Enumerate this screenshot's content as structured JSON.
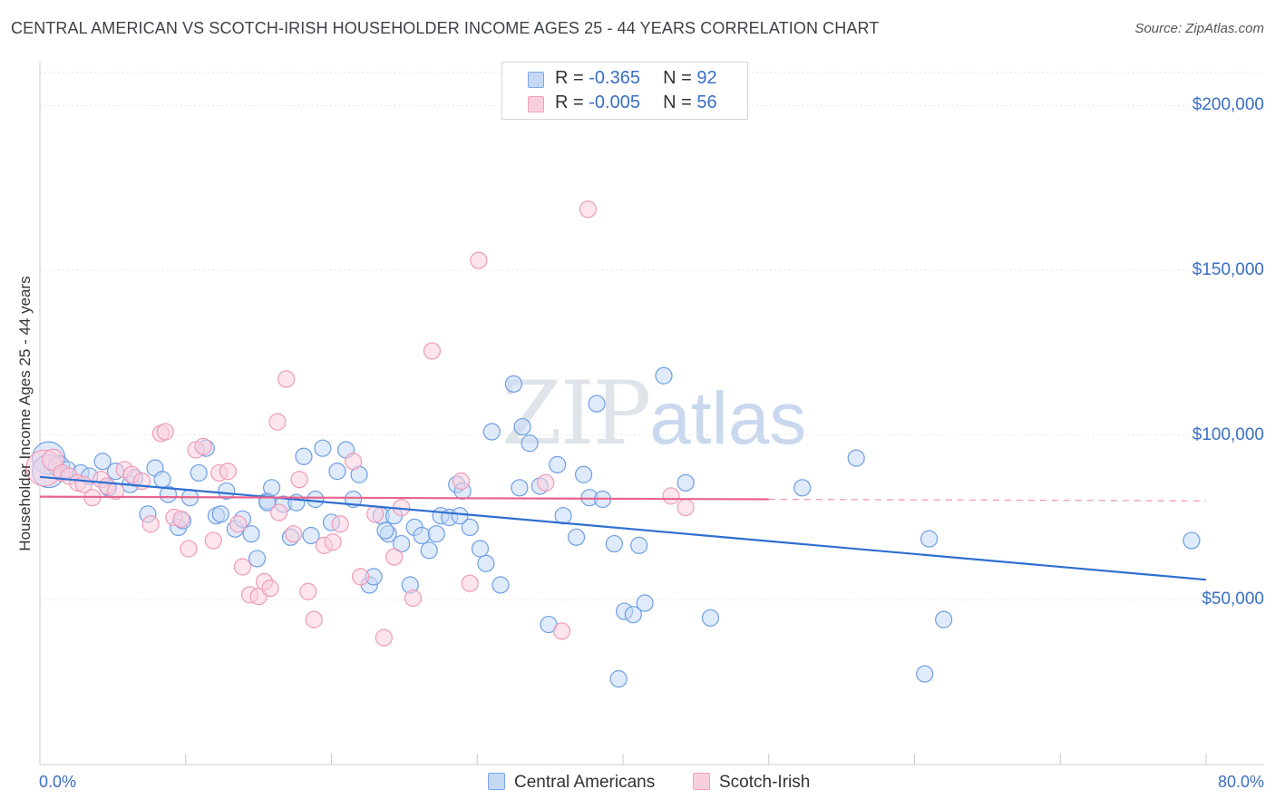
{
  "title": "CENTRAL AMERICAN VS SCOTCH-IRISH HOUSEHOLDER INCOME AGES 25 - 44 YEARS CORRELATION CHART",
  "source": "Source: ZipAtlas.com",
  "watermark": {
    "zip": "ZIP",
    "atlas": "atlas"
  },
  "legend": {
    "rows": [
      {
        "r_label": "R = ",
        "r_value": "-0.365",
        "n_label": "N = ",
        "n_value": "92",
        "color": "#7aa6e6",
        "fill": "#c5d9f5"
      },
      {
        "r_label": "R = ",
        "r_value": "-0.005",
        "n_label": "N = ",
        "n_value": "56",
        "color": "#f0a0bd",
        "fill": "#f9cfde"
      }
    ]
  },
  "bottom_legend": [
    {
      "label": "Central Americans",
      "color": "#7aa6e6",
      "fill": "#c5d9f5"
    },
    {
      "label": "Scotch-Irish",
      "color": "#f0a0bd",
      "fill": "#f9cfde"
    }
  ],
  "chart_data": {
    "type": "scatter",
    "title": "CENTRAL AMERICAN VS SCOTCH-IRISH HOUSEHOLDER INCOME AGES 25 - 44 YEARS CORRELATION CHART",
    "xlabel": "",
    "ylabel": "Householder Income Ages 25 - 44 years",
    "xlim": [
      0,
      80
    ],
    "ylim": [
      0,
      210000
    ],
    "x_tick_labels": [
      "0.0%",
      "80.0%"
    ],
    "y_ticks": [
      50000,
      100000,
      150000,
      200000
    ],
    "y_tick_labels": [
      "$50,000",
      "$100,000",
      "$150,000",
      "$200,000"
    ],
    "grid": true,
    "series": [
      {
        "name": "Central Americans",
        "color": "#6f9fe2",
        "fill": "#c5d9f5",
        "trend": {
          "x": [
            0,
            80
          ],
          "y": [
            87300,
            56100
          ],
          "color": "#2f6fd0"
        },
        "points": [
          [
            0.6,
            93000,
            2
          ],
          [
            0.6,
            89000,
            2
          ],
          [
            1.3,
            90500,
            1.3
          ],
          [
            1.9,
            89500,
            1
          ],
          [
            2.8,
            88500,
            1
          ],
          [
            3.4,
            87500,
            1
          ],
          [
            4.3,
            92000,
            1
          ],
          [
            4.7,
            84000,
            1
          ],
          [
            5.2,
            89000,
            1
          ],
          [
            6.2,
            85000,
            1
          ],
          [
            6.5,
            87000,
            1
          ],
          [
            7.4,
            76000,
            1
          ],
          [
            7.9,
            90000,
            1
          ],
          [
            8.4,
            86500,
            1
          ],
          [
            8.8,
            82000,
            1
          ],
          [
            9.5,
            72000,
            1
          ],
          [
            9.8,
            74000,
            1
          ],
          [
            10.3,
            81000,
            1
          ],
          [
            10.9,
            88500,
            1
          ],
          [
            11.4,
            96000,
            1
          ],
          [
            12.1,
            75500,
            1
          ],
          [
            12.4,
            76000,
            1
          ],
          [
            12.8,
            83000,
            1
          ],
          [
            13.4,
            71500,
            1
          ],
          [
            13.9,
            74500,
            1
          ],
          [
            14.5,
            70000,
            1
          ],
          [
            14.9,
            62500,
            1
          ],
          [
            15.6,
            80000,
            1
          ],
          [
            15.9,
            84000,
            1
          ],
          [
            16.7,
            79000,
            1
          ],
          [
            17.2,
            69000,
            1
          ],
          [
            17.6,
            79500,
            1
          ],
          [
            18.1,
            93500,
            1
          ],
          [
            18.6,
            69500,
            1
          ],
          [
            18.9,
            80500,
            1
          ],
          [
            19.4,
            96000,
            1
          ],
          [
            20.0,
            73500,
            1
          ],
          [
            20.4,
            89000,
            1
          ],
          [
            21.0,
            95500,
            1
          ],
          [
            21.5,
            80500,
            1
          ],
          [
            21.9,
            88000,
            1
          ],
          [
            22.6,
            54500,
            1
          ],
          [
            22.9,
            57000,
            1
          ],
          [
            23.4,
            75500,
            1
          ],
          [
            23.9,
            70000,
            1
          ],
          [
            24.3,
            75500,
            1
          ],
          [
            24.8,
            67000,
            1
          ],
          [
            25.4,
            54500,
            1
          ],
          [
            25.7,
            72000,
            1
          ],
          [
            26.2,
            69500,
            1
          ],
          [
            26.7,
            65000,
            1
          ],
          [
            27.2,
            70000,
            1
          ],
          [
            27.5,
            75500,
            1
          ],
          [
            28.1,
            75000,
            1
          ],
          [
            28.6,
            85000,
            1
          ],
          [
            29.0,
            83000,
            1
          ],
          [
            29.5,
            72000,
            1
          ],
          [
            30.2,
            65500,
            1
          ],
          [
            30.6,
            61000,
            1
          ],
          [
            31.0,
            101000,
            1
          ],
          [
            31.6,
            54500,
            1
          ],
          [
            32.5,
            115500,
            1
          ],
          [
            32.9,
            84000,
            1
          ],
          [
            33.1,
            102500,
            1
          ],
          [
            33.6,
            97500,
            1
          ],
          [
            34.3,
            84500,
            1
          ],
          [
            34.9,
            42500,
            1
          ],
          [
            35.5,
            91000,
            1
          ],
          [
            35.9,
            75500,
            1
          ],
          [
            36.8,
            69000,
            1
          ],
          [
            37.3,
            88000,
            1
          ],
          [
            37.7,
            81000,
            1
          ],
          [
            38.2,
            109500,
            1
          ],
          [
            38.6,
            80500,
            1
          ],
          [
            39.4,
            67000,
            1
          ],
          [
            39.7,
            26000,
            1
          ],
          [
            40.1,
            46500,
            1
          ],
          [
            40.7,
            45500,
            1
          ],
          [
            41.1,
            66500,
            1
          ],
          [
            41.5,
            49000,
            1
          ],
          [
            42.8,
            118000,
            1
          ],
          [
            44.3,
            85500,
            1
          ],
          [
            46.0,
            44500,
            1
          ],
          [
            52.3,
            84000,
            1
          ],
          [
            56.0,
            93000,
            1
          ],
          [
            60.7,
            27500,
            1
          ],
          [
            61.0,
            68500,
            1
          ],
          [
            62.0,
            44000,
            1
          ],
          [
            79.0,
            68000,
            1
          ],
          [
            15.6,
            79500,
            1
          ],
          [
            28.8,
            75500,
            1
          ],
          [
            23.7,
            71000,
            1
          ]
        ]
      },
      {
        "name": "Scotch-Irish",
        "color": "#ee9bb9",
        "fill": "#f9cfde",
        "trend": {
          "x": [
            0,
            50
          ],
          "y": [
            81300,
            80500
          ],
          "color": "#e8638f",
          "dashed_to": 80
        },
        "points": [
          [
            0.3,
            90000,
            2.2
          ],
          [
            0.9,
            92500,
            1.3
          ],
          [
            1.5,
            88500,
            1
          ],
          [
            2.0,
            87500,
            1
          ],
          [
            2.6,
            85500,
            1
          ],
          [
            3.0,
            85000,
            1
          ],
          [
            3.6,
            81000,
            1
          ],
          [
            4.2,
            86500,
            1
          ],
          [
            4.6,
            84500,
            1
          ],
          [
            5.2,
            83000,
            1
          ],
          [
            5.8,
            89500,
            1
          ],
          [
            6.3,
            88000,
            1
          ],
          [
            7.0,
            86000,
            1
          ],
          [
            7.6,
            73000,
            1
          ],
          [
            8.3,
            100500,
            1
          ],
          [
            8.6,
            101000,
            1
          ],
          [
            9.2,
            75000,
            1
          ],
          [
            9.7,
            74500,
            1
          ],
          [
            10.2,
            65500,
            1
          ],
          [
            10.7,
            95500,
            1
          ],
          [
            11.2,
            96500,
            1
          ],
          [
            11.9,
            68000,
            1
          ],
          [
            12.3,
            88500,
            1
          ],
          [
            12.9,
            89000,
            1
          ],
          [
            13.6,
            73000,
            1
          ],
          [
            13.9,
            60000,
            1
          ],
          [
            14.4,
            51500,
            1
          ],
          [
            15.0,
            51000,
            1
          ],
          [
            15.4,
            55500,
            1
          ],
          [
            15.8,
            53500,
            1
          ],
          [
            16.3,
            104000,
            1
          ],
          [
            16.9,
            117000,
            1
          ],
          [
            17.4,
            70000,
            1
          ],
          [
            17.8,
            86500,
            1
          ],
          [
            18.4,
            52500,
            1
          ],
          [
            18.8,
            44000,
            1
          ],
          [
            19.5,
            66500,
            1
          ],
          [
            20.1,
            67500,
            1
          ],
          [
            20.6,
            73000,
            1
          ],
          [
            21.5,
            92000,
            1
          ],
          [
            22.0,
            57000,
            1
          ],
          [
            23.0,
            76000,
            1
          ],
          [
            23.6,
            38500,
            1
          ],
          [
            24.3,
            63000,
            1
          ],
          [
            24.8,
            78000,
            1
          ],
          [
            25.6,
            50500,
            1
          ],
          [
            26.9,
            125500,
            1
          ],
          [
            28.9,
            86000,
            1
          ],
          [
            29.5,
            55000,
            1
          ],
          [
            30.1,
            153000,
            1
          ],
          [
            34.7,
            85500,
            1
          ],
          [
            35.8,
            40500,
            1
          ],
          [
            37.6,
            168500,
            1
          ],
          [
            44.3,
            78000,
            1
          ],
          [
            43.3,
            81500,
            1
          ],
          [
            16.4,
            76500,
            1
          ]
        ]
      }
    ]
  }
}
